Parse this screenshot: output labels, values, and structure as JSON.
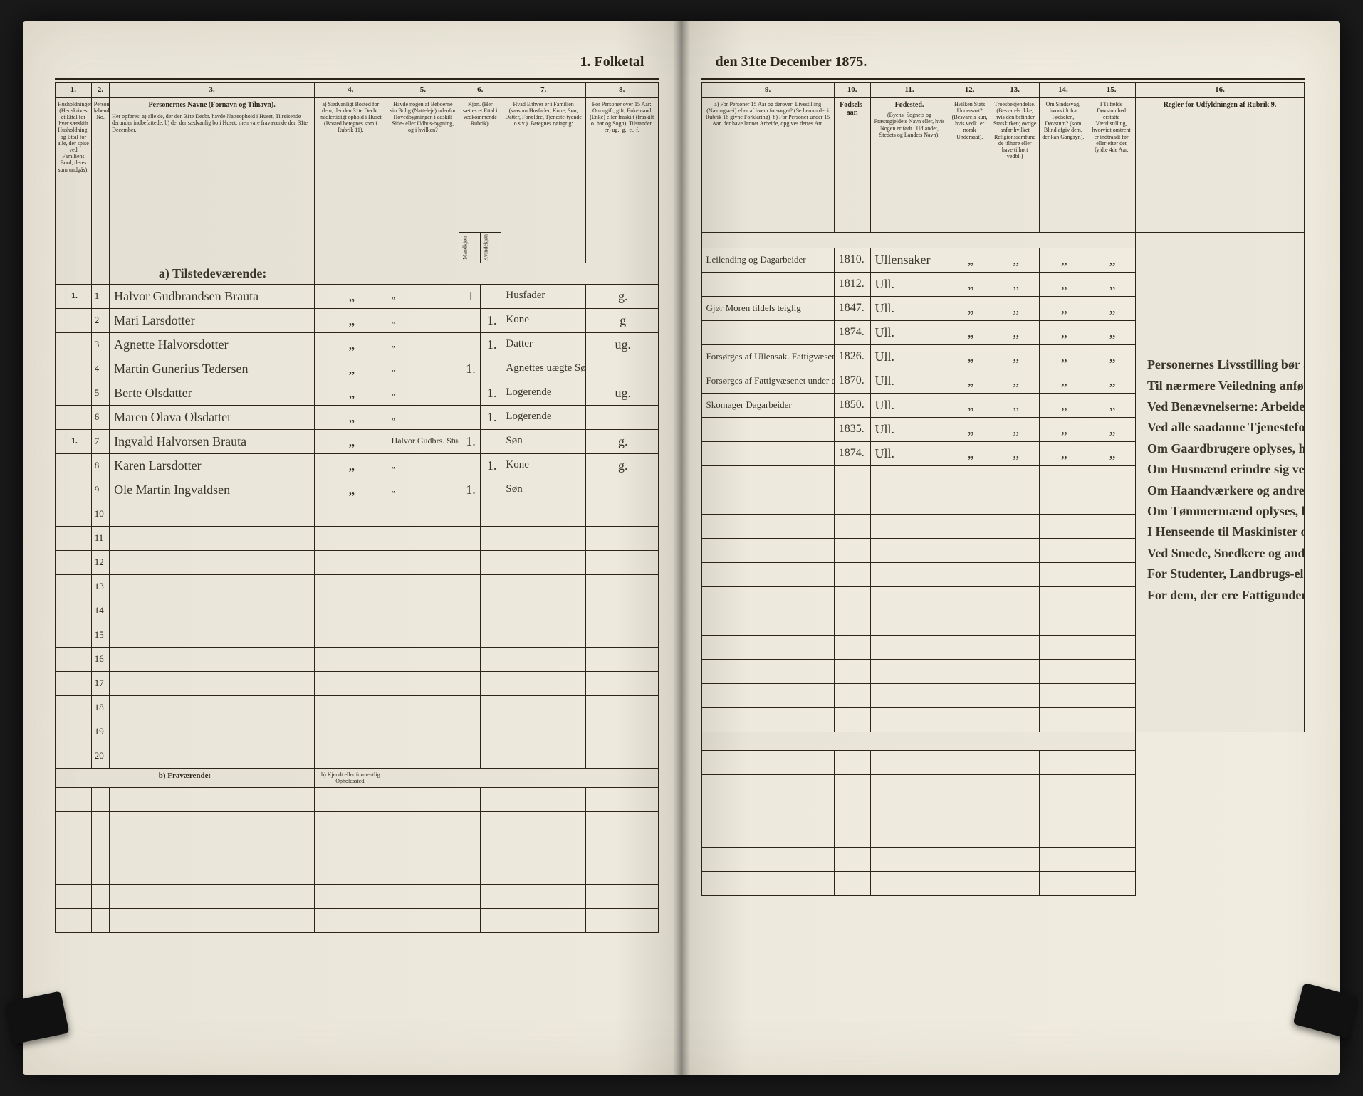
{
  "title_left": "1. Folketal",
  "title_right": "den 31te December 1875.",
  "columns_left": {
    "c1": "1.",
    "c2": "2.",
    "c3": "3.",
    "c4": "4.",
    "c5": "5.",
    "c6": "6.",
    "c7": "7.",
    "c8": "8."
  },
  "columns_right": {
    "c9": "9.",
    "c10": "10.",
    "c11": "11.",
    "c12": "12.",
    "c13": "13.",
    "c14": "14.",
    "c15": "15.",
    "c16": "16."
  },
  "headers_left": {
    "h1": "Husholdninger. (Her skrives et Ettal for hver særskilt Husholdning, og Ettal for alle, der spise ved Familiens Bord, deres sum undgås).",
    "h2": "Personernes løbende No.",
    "h3_title": "Personernes Navne (Fornavn og Tilnavn).",
    "h3_sub": "Her opføres: a) alle de, der den 31te Decbr. havde Natteophold i Huset, Tilreisende derunder indbefattede; b) de, der sædvanlig bo i Huset, men vare fraværende den 31te December.",
    "h4": "a) Sædvanligt Bosted for dem, der den 31te Decbr. midlertidigt ophold i Huset (Bosted betegnes som i Rubrik 11).",
    "h5": "Havde nogen af Beboerne sin Bolig (Natteleje) udenfor Hovedbygningen i adskilt Side- eller Udhus-bygning, og i hvilken?",
    "h6_title": "Kjøn. (Her sættes et Ettal i vedkommende Rubrik).",
    "h6a": "Mandkjøn",
    "h6b": "Kvindekjøn",
    "h7": "Hvad Enhver er i Familien (saasom Husfader, Kone, Søn, Datter, Forældre, Tjeneste-tyende o.s.v.). Betegnes nøiagtig:",
    "h8": "For Personer over 15 Aar: Om ugift, gift, Enkemand (Enke) eller fraskilt (fraskilt o. har og Sogn). Tilstanden er) ug., g., e., f."
  },
  "headers_right": {
    "h9": "a) For Personer 15 Aar og derover: Livsstilling (Næringsvei) eller af hvem forsørget? (Se herom det i Rubrik 16 givne Forklaring). b) For Personer under 15 Aar, der have lønnet Arbeide, opgives dettes Art.",
    "h10": "Fødsels-aar.",
    "h11_title": "Fødested.",
    "h11_sub": "(Byens, Sognets og Præstegjeldets Navn eller, hvis Nogen er født i Udlandet, Stedets og Landets Navn).",
    "h12": "Hvilken Stats Undersaat? (Besvarels kun, hvis vedk. er norsk Undersaat).",
    "h13": "Troesbekjendelse. (Besvarels ikke, hvis den befinder Statskirken; øvrige anfør hvilket Religionssamfund de tilhøre eller have tilhørt vedbl.)",
    "h14": "Om Sindssvag, hvorvidt fra Fødselen, Døvstum? (som Blind afgiv dem, der kan Gangsyn).",
    "h15": "I Tilfælde Døvstumhed erstatte Værdistilling, hvorvidt omtrent er indtraadt før eller efter det fyldte 4de Aar.",
    "h16_title": "Regler for Udfyldningen af Rubrik 9."
  },
  "section_a": "a) Tilstedeværende:",
  "section_b": "b) Fraværende:",
  "section_b_col4": "b) Kjendt eller formentlig Opholdssted.",
  "rows": [
    {
      "hh": "1.",
      "n": "1",
      "name": "Halvor Gudbrandsen Brauta",
      "c4": "„",
      "c5": "„",
      "sx": "1",
      "sx2": "",
      "rel": "Husfader",
      "civ": "g.",
      "occ": "Leilending og Dagarbeider",
      "yr": "1810.",
      "bp": "Ullensaker",
      "c12": "„",
      "c13": "„",
      "c14": "„",
      "c15": "„"
    },
    {
      "hh": "",
      "n": "2",
      "name": "Mari Larsdotter",
      "c4": "„",
      "c5": "„",
      "sx": "",
      "sx2": "1.",
      "rel": "Kone",
      "civ": "g",
      "occ": "",
      "yr": "1812.",
      "bp": "Ull.",
      "c12": "„",
      "c13": "„",
      "c14": "„",
      "c15": "„"
    },
    {
      "hh": "",
      "n": "3",
      "name": "Agnette Halvorsdotter",
      "c4": "„",
      "c5": "„",
      "sx": "",
      "sx2": "1.",
      "rel": "Datter",
      "civ": "ug.",
      "occ": "Gjør Moren tildels teiglig",
      "yr": "1847.",
      "bp": "Ull.",
      "c12": "„",
      "c13": "„",
      "c14": "„",
      "c15": "„"
    },
    {
      "hh": "",
      "n": "4",
      "name": "Martin Gunerius Tedersen",
      "c4": "„",
      "c5": "„",
      "sx": "1.",
      "sx2": "",
      "rel": "Agnettes uægte Søn",
      "civ": "",
      "occ": "",
      "yr": "1874.",
      "bp": "Ull.",
      "c12": "„",
      "c13": "„",
      "c14": "„",
      "c15": "„"
    },
    {
      "hh": "",
      "n": "5",
      "name": "Berte Olsdatter",
      "c4": "„",
      "c5": "„",
      "sx": "",
      "sx2": "1.",
      "rel": "Logerende",
      "civ": "ug.",
      "occ": "Forsørges af Ullensak. Fattigvæsen",
      "yr": "1826.",
      "bp": "Ull.",
      "c12": "„",
      "c13": "„",
      "c14": "„",
      "c15": "„"
    },
    {
      "hh": "",
      "n": "6",
      "name": "Maren Olava Olsdatter",
      "c4": "„",
      "c5": "„",
      "sx": "",
      "sx2": "1.",
      "rel": "Logerende",
      "civ": "",
      "occ": "Forsørges af Fattigvæsenet under dets",
      "yr": "1870.",
      "bp": "Ull.",
      "c12": "„",
      "c13": "„",
      "c14": "„",
      "c15": "„"
    },
    {
      "hh": "1.",
      "n": "7",
      "name": "Ingvald Halvorsen Brauta",
      "c4": "„",
      "c5": "Halvor Gudbrs. Stue",
      "sx": "1.",
      "sx2": "",
      "rel": "Søn",
      "civ": "g.",
      "occ": "Skomager Dagarbeider",
      "yr": "1850.",
      "bp": "Ull.",
      "c12": "„",
      "c13": "„",
      "c14": "„",
      "c15": "„"
    },
    {
      "hh": "",
      "n": "8",
      "name": "Karen Larsdotter",
      "c4": "„",
      "c5": "„",
      "sx": "",
      "sx2": "1.",
      "rel": "Kone",
      "civ": "g.",
      "occ": "",
      "yr": "1835.",
      "bp": "Ull.",
      "c12": "„",
      "c13": "„",
      "c14": "„",
      "c15": "„"
    },
    {
      "hh": "",
      "n": "9",
      "name": "Ole Martin Ingvaldsen",
      "c4": "„",
      "c5": "„",
      "sx": "1.",
      "sx2": "",
      "rel": "Søn",
      "civ": "",
      "occ": "",
      "yr": "1874.",
      "bp": "Ull.",
      "c12": "„",
      "c13": "„",
      "c14": "„",
      "c15": "„"
    }
  ],
  "empty_rows_a": [
    "10",
    "11",
    "12",
    "13",
    "14",
    "15",
    "16",
    "17",
    "18",
    "19",
    "20"
  ],
  "empty_rows_b": 6,
  "rules": {
    "p": [
      "Personernes Livsstilling bør angives efter deres væsentlige Beskjæftigelse eller Næringsvei med Udelukkelse af Benævnelser, der kun betegne Bekklædelse af Ombud, tagne Examina eller andre ydre Egenskaber. Forener Skatteyderen flere Beskjæftigelser, der kan ansees som dobbelt Livsstilling, idet de begge medføre Erhvervskilde som f. Ex. Jordbruger og Gaardbruger o.s.v. Forøvrigt bør Stillingen betegnes saa bestemt, specielt og nøiagtigt som muligt.",
      "Til nærmere Veiledning anføres her endel Exempler:",
      "Ved Benævnelserne: Arbeider, Dagarbeider, Inderst, Løskarl, Strandsidder eller lign. bør tilføies det Slags Arbeide, hvormed vedkommende hovedsagelig er beskjæftiget; f. Ex. Jordbrug, Tømmerarbeide, Veiarbeide, hvilket Slags Fabrik- eller Haandverksarbeide o.s.v.",
      "Ved alle saadanne Tjenesteforhold, som baade kan være privat og offentligt, bør Forholdets Art opgives, t. Ex. ved Regnskabsførere, om de ere ansatte ved en privat eller ved en offentlig Indretning og da hvilken; ligesaa ved Fuldmægtig, Kontorist, Opsynsmand, Forvalter, Assistent, Lærer, Lærerinde o.s.v.",
      "Om Gaardbrugere oplyses, hvorvidt de ere Selveiere, Leilændinge eller Forpagtere.",
      "Om Husmænd erindre sig ved Jordbrug eller ved andet Arbeide og da hvad Slags.",
      "Om Haandværkere og andre Industridrivende, hvad Slags Industri de drive, samt hvorvidt de drive den selvstændigt eller ere i andres Arbeide.",
      "Om Tømmermænd oplyses, hvorvidt de ere Hus eller Skibstømmermænd, eller arbeide paa Skibsverfter og Maskinbrug, hvormed ved andet Tømmerarbeide.",
      "I Henseende til Maskinister og Fyrbødere oplyses, til hvis de fare tilsøs eller ved hvilket Slags Fabrikdrift eller anden Virksomhed ere ansatte.",
      "Ved Smede, Snedkere og andre, der ere ansatte ved Fabriker og Brug, bør dettes Navn opgives.",
      "For Studenter, Landbrugs-elever, Skoledisciple og andre, der ikke forsørge sig selv, bør Forsørgerens Livsstilling opgives, hvorvidt denne ikke bo sammen med dem.",
      "For dem, der ere Fattigunderstøttede, anføres, hvorvidt de ere i sidste Tilfælde, hvad de forøvrigt ernære sig ved."
    ]
  }
}
